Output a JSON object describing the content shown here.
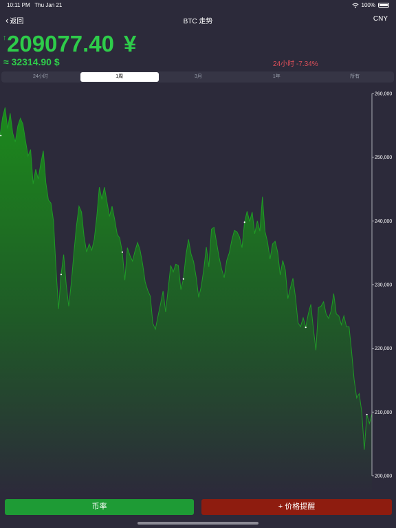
{
  "status": {
    "time": "10:11 PM",
    "date": "Thu Jan 21",
    "battery": "100%"
  },
  "nav": {
    "back": "返回",
    "title": "BTC 走势",
    "currency": "CNY"
  },
  "price": {
    "arrow": "↑",
    "cny": "209077.40",
    "cny_symbol": "¥",
    "usd": "≈ 32314.90 $",
    "change": "24小时 -7.34%"
  },
  "tabs": [
    "24小时",
    "1周",
    "3月",
    "1年",
    "所有"
  ],
  "active_tab": 1,
  "buttons": {
    "rate": "币率",
    "alert": "+ 价格提醒"
  },
  "colors": {
    "up": "#2ecc4a",
    "down": "#e0505a",
    "rate_button": "#1e9b35",
    "alert_button": "#8e1c0f"
  },
  "chart_data": {
    "type": "area",
    "title": "",
    "xlabel": "",
    "ylabel": "",
    "ylim": [
      200000,
      260000
    ],
    "yticks": [
      "260,000",
      "250,000",
      "240,000",
      "230,000",
      "220,000",
      "210,000",
      "200,000"
    ],
    "grid": false,
    "series": [
      {
        "values": [
          253400,
          256200,
          257800,
          254500,
          256900,
          253800,
          252400,
          254900,
          256100,
          255200,
          252600,
          250200,
          251200,
          245800,
          248100,
          246600,
          249000,
          251000,
          246000,
          243300,
          242800,
          240000,
          232400,
          226200,
          231600,
          234700,
          230000,
          226600,
          230400,
          235000,
          239200,
          242300,
          241400,
          237500,
          235100,
          236400,
          235400,
          237100,
          240700,
          245300,
          243400,
          245300,
          243000,
          240700,
          242300,
          240300,
          237900,
          237300,
          235100,
          230700,
          235800,
          234600,
          233700,
          235300,
          236600,
          235400,
          233200,
          230400,
          229100,
          228200,
          223900,
          223000,
          225000,
          226900,
          229000,
          225700,
          229300,
          233000,
          232000,
          233200,
          233000,
          229200,
          230900,
          234700,
          237100,
          234800,
          233600,
          231200,
          228000,
          229700,
          232400,
          235900,
          232800,
          238700,
          239000,
          236600,
          234300,
          232400,
          231100,
          233800,
          235000,
          237000,
          238500,
          238300,
          237500,
          235800,
          239800,
          241500,
          239900,
          241400,
          238000,
          240000,
          238400,
          243800,
          238400,
          236700,
          234000,
          236400,
          236800,
          235100,
          231500,
          233800,
          232300,
          227800,
          229500,
          231000,
          228000,
          224000,
          223400,
          224800,
          223300,
          225400,
          226900,
          223100,
          219700,
          226400,
          226600,
          227300,
          225400,
          224700,
          225900,
          228600,
          225400,
          225100,
          223700,
          225100,
          223400,
          223400,
          219500,
          215100,
          212200,
          212900,
          210000,
          204100,
          209600,
          208200,
          209700
        ]
      }
    ]
  }
}
